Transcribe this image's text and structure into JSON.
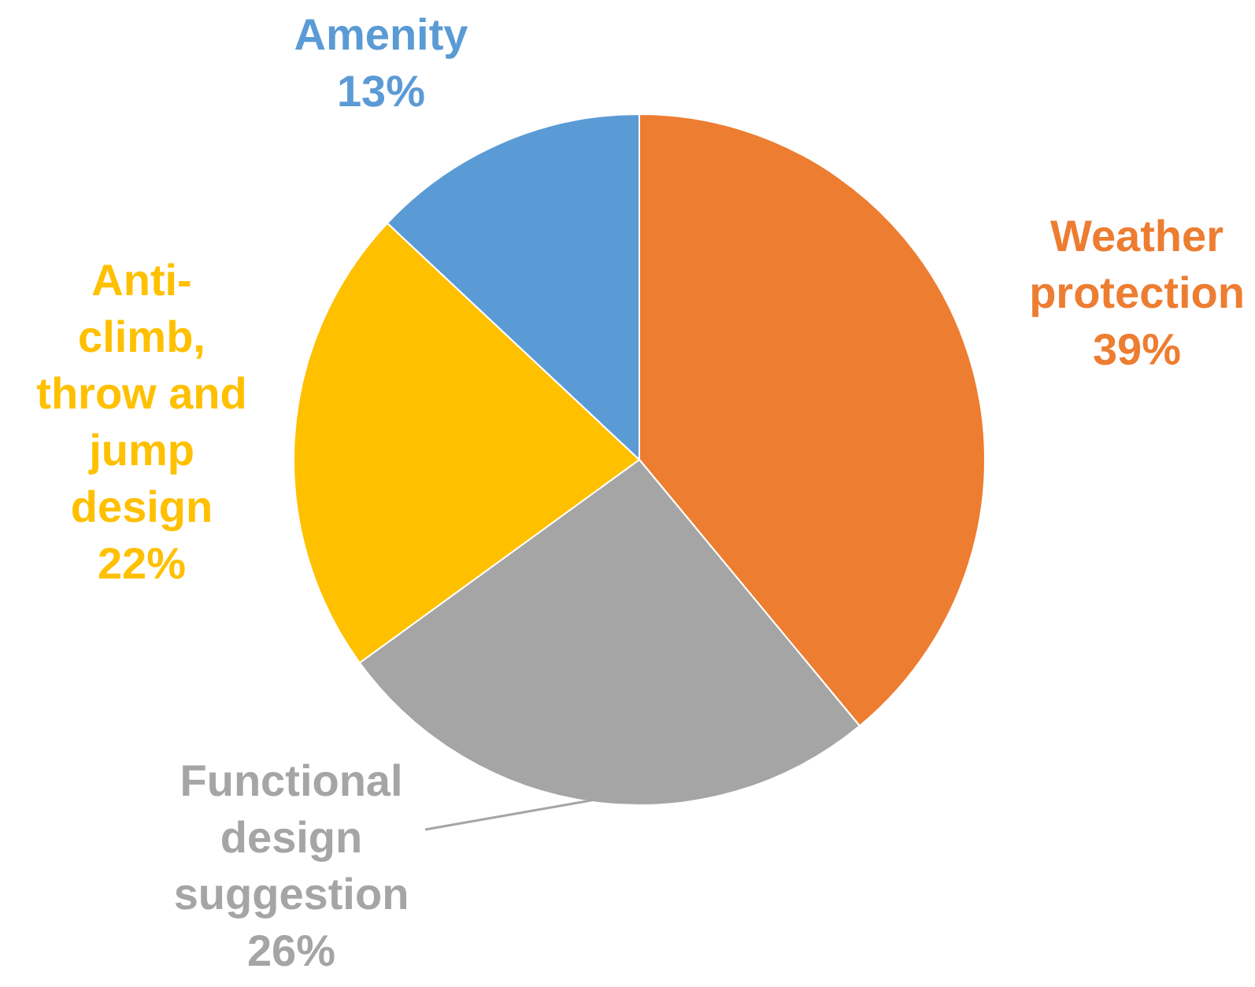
{
  "chart_data": {
    "type": "pie",
    "categories": [
      "Weather protection",
      "Functional design suggestion",
      "Anti-climb, throw and jump design",
      "Amenity"
    ],
    "values": [
      39,
      26,
      22,
      13
    ],
    "colors": [
      "#ed7d31",
      "#a5a5a5",
      "#ffc000",
      "#5b9bd5"
    ],
    "value_labels": [
      "39%",
      "26%",
      "22%",
      "13%"
    ],
    "legend": false
  }
}
